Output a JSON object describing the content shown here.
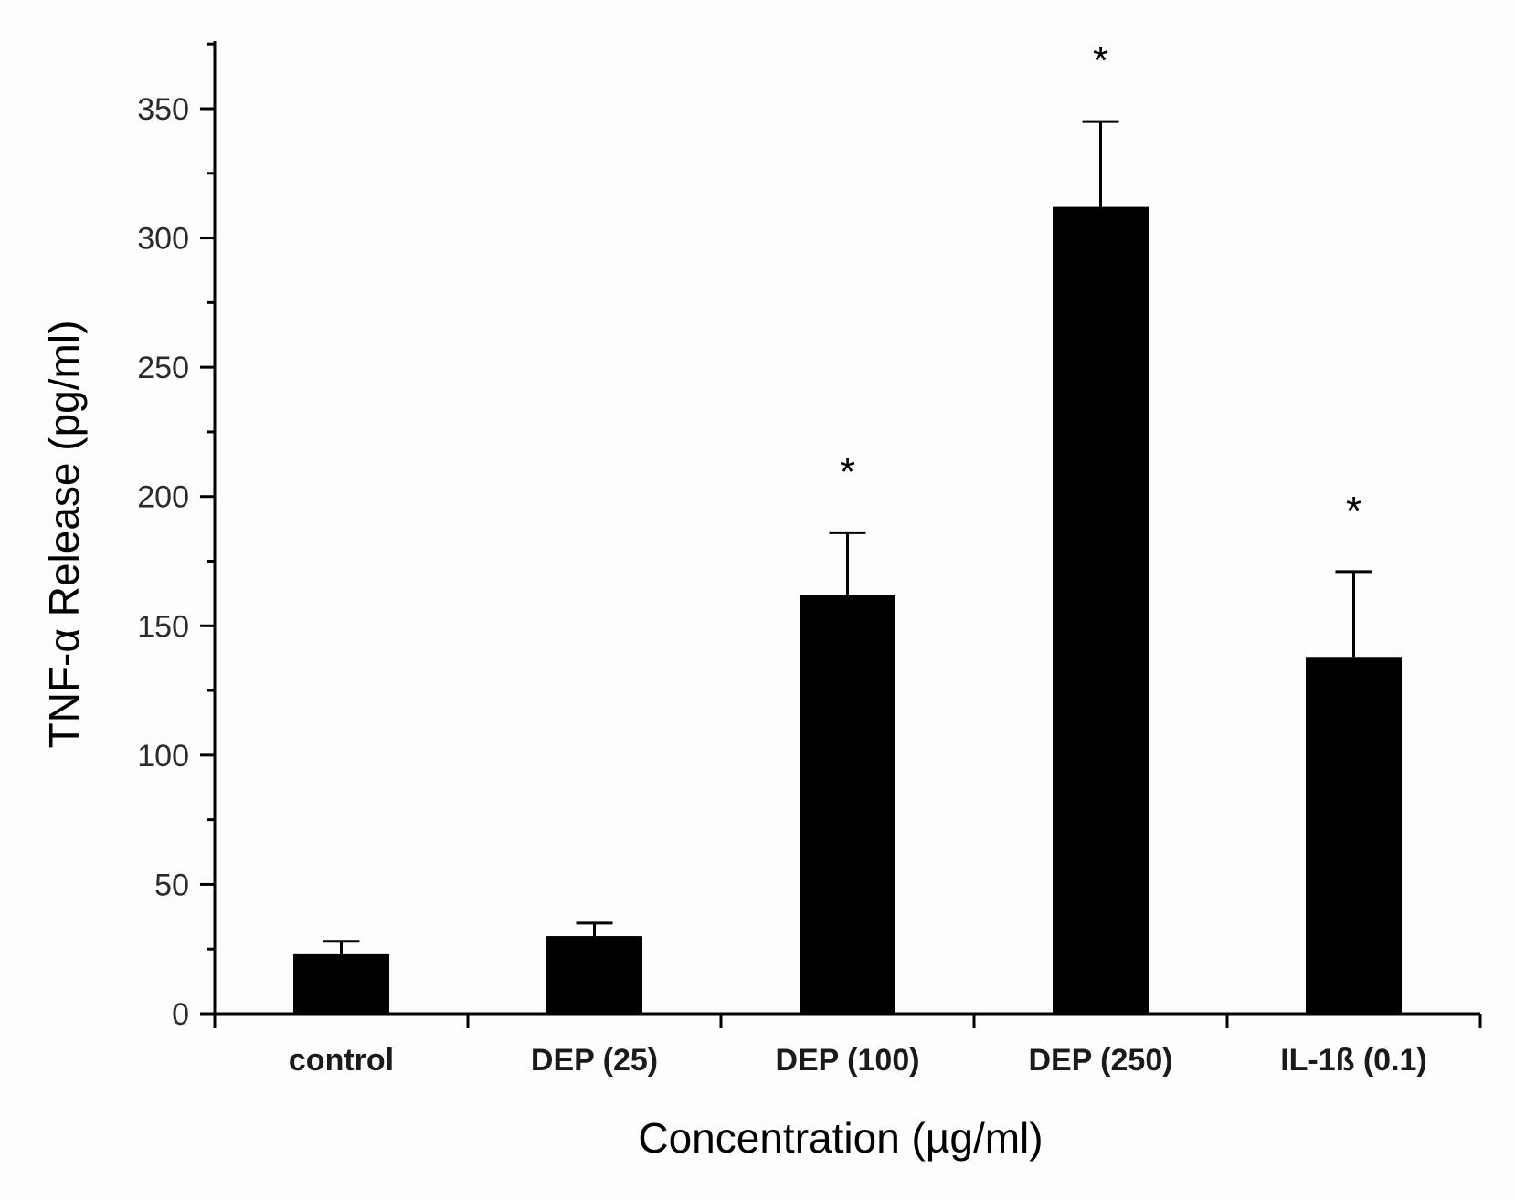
{
  "chart_data": {
    "type": "bar",
    "title": "",
    "xlabel": "Concentration (µg/ml)",
    "ylabel": "TNF-α Release (pg/ml)",
    "ylim": [
      0,
      380
    ],
    "yticks": [
      0,
      50,
      100,
      150,
      200,
      250,
      300,
      350
    ],
    "categories": [
      "control",
      "DEP (25)",
      "DEP (100)",
      "DEP (250)",
      "IL-1ß (0.1)"
    ],
    "values": [
      23,
      30,
      162,
      312,
      138
    ],
    "errors": [
      5,
      5,
      24,
      33,
      33
    ],
    "significance": [
      "",
      "",
      "*",
      "*",
      "*"
    ],
    "colors": {
      "bar": "#000000",
      "axis": "#000000",
      "text": "#1a1a1a"
    }
  }
}
